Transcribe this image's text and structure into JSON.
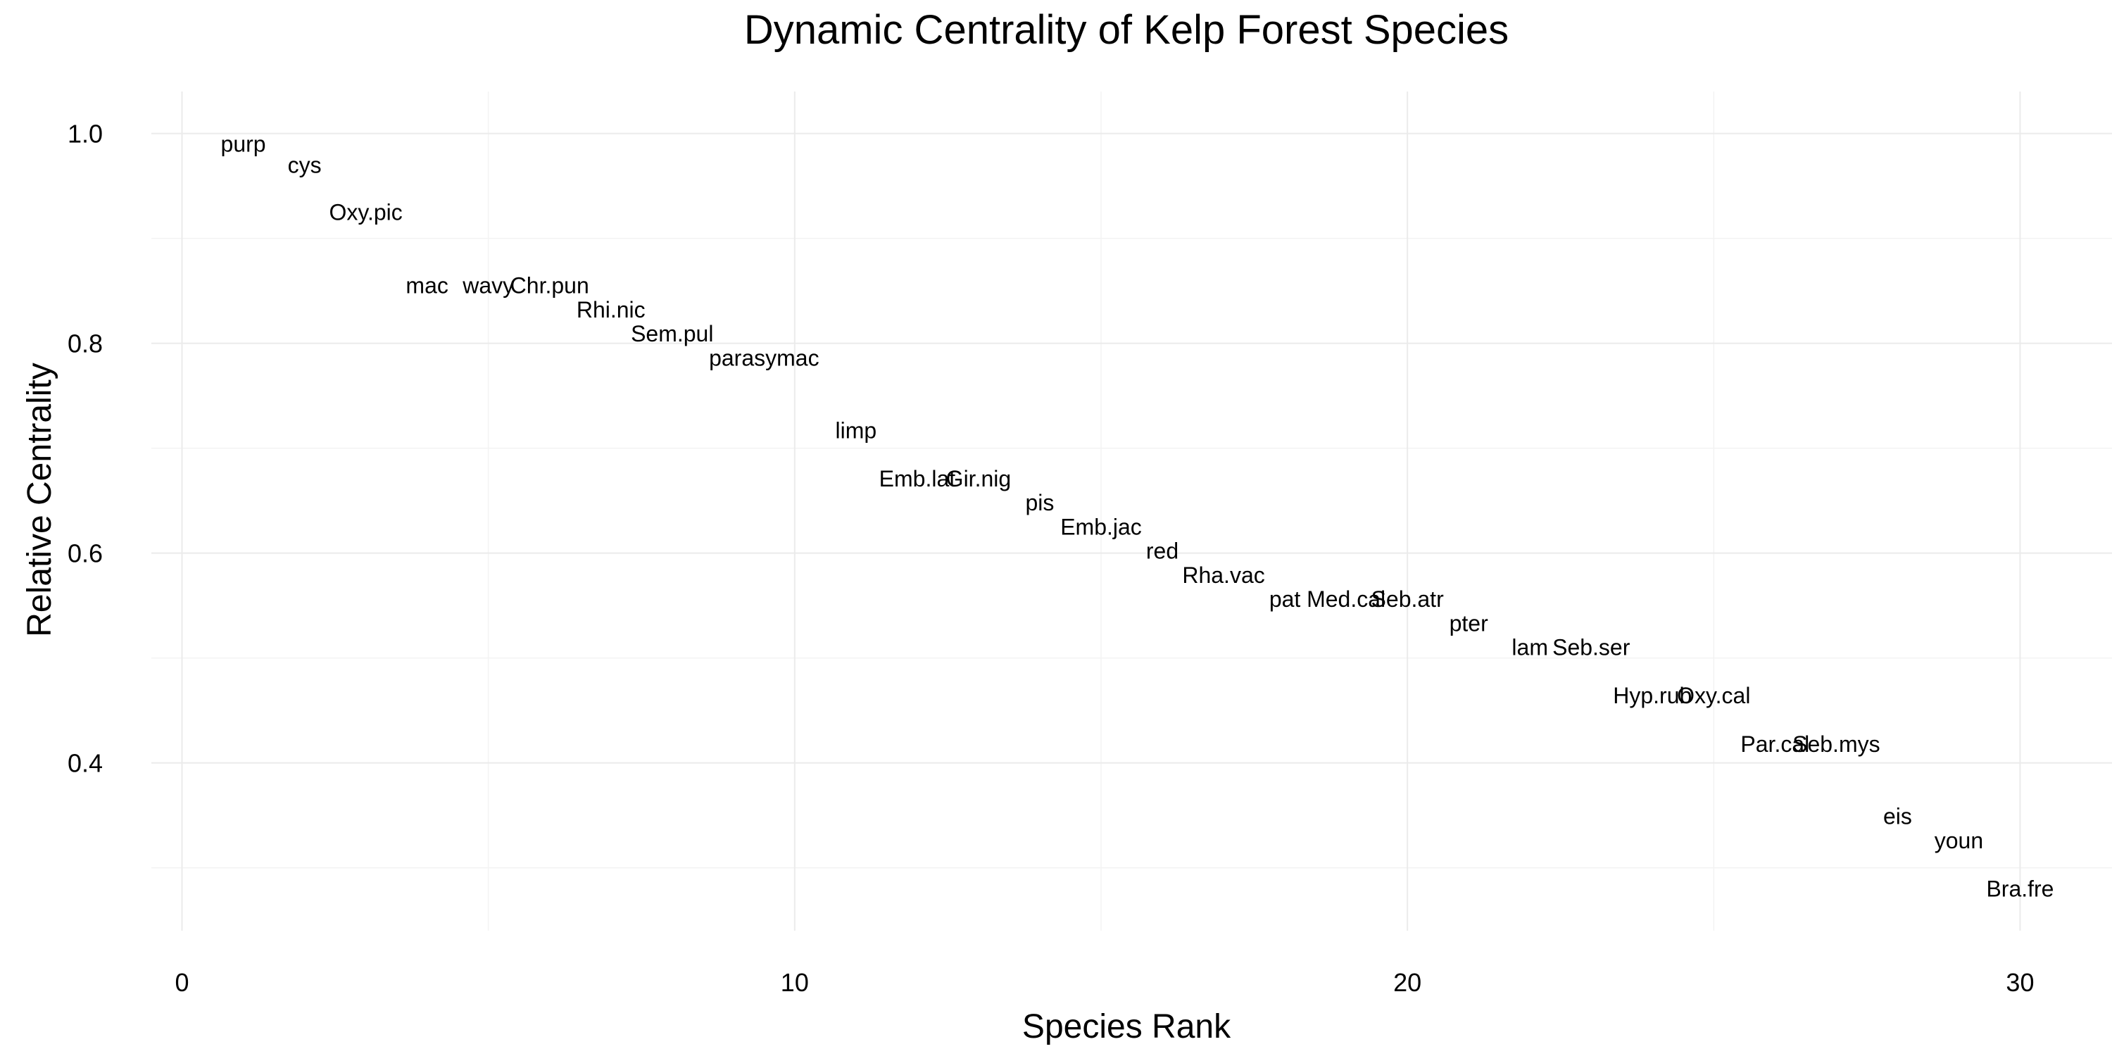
{
  "chart_data": {
    "type": "scatter",
    "mark": "text",
    "title": "Dynamic Centrality of Kelp Forest Species",
    "xlabel": "Species Rank",
    "ylabel": "Relative Centrality",
    "xlim": [
      -0.5,
      31.5
    ],
    "ylim": [
      0.24,
      1.04
    ],
    "x_ticks": [
      0,
      10,
      20,
      30
    ],
    "x_tick_labels": [
      "0",
      "10",
      "20",
      "30"
    ],
    "y_ticks": [
      0.4,
      0.6,
      0.8,
      1.0
    ],
    "y_tick_labels": [
      "0.4",
      "0.6",
      "0.8",
      "1.0"
    ],
    "grid": true,
    "legend": "none",
    "points": [
      {
        "label": "purp",
        "x": 1,
        "y": 0.99
      },
      {
        "label": "cys",
        "x": 2,
        "y": 0.97
      },
      {
        "label": "Oxy.pic",
        "x": 3,
        "y": 0.925
      },
      {
        "label": "mac",
        "x": 4,
        "y": 0.855
      },
      {
        "label": "wavy",
        "x": 5,
        "y": 0.855
      },
      {
        "label": "Chr.pun",
        "x": 6,
        "y": 0.855
      },
      {
        "label": "Rhi.nic",
        "x": 7,
        "y": 0.832
      },
      {
        "label": "Sem.pul",
        "x": 8,
        "y": 0.809
      },
      {
        "label": "parasymac",
        "x": 9.5,
        "y": 0.786
      },
      {
        "label": "limp",
        "x": 11,
        "y": 0.717
      },
      {
        "label": "Emb.lat",
        "x": 12,
        "y": 0.671
      },
      {
        "label": "Gir.nig",
        "x": 13,
        "y": 0.671
      },
      {
        "label": "pis",
        "x": 14,
        "y": 0.648
      },
      {
        "label": "Emb.jac",
        "x": 15,
        "y": 0.625
      },
      {
        "label": "red",
        "x": 16,
        "y": 0.602
      },
      {
        "label": "Rha.vac",
        "x": 17,
        "y": 0.579
      },
      {
        "label": "pat",
        "x": 18,
        "y": 0.556
      },
      {
        "label": "Med.cal",
        "x": 19,
        "y": 0.556
      },
      {
        "label": "Seb.atr",
        "x": 20,
        "y": 0.556
      },
      {
        "label": "pter",
        "x": 21,
        "y": 0.533
      },
      {
        "label": "lam",
        "x": 22,
        "y": 0.51
      },
      {
        "label": "Seb.ser",
        "x": 23,
        "y": 0.51
      },
      {
        "label": "Hyp.rub",
        "x": 24,
        "y": 0.464
      },
      {
        "label": "Oxy.cal",
        "x": 25,
        "y": 0.464
      },
      {
        "label": "Par.cal",
        "x": 26,
        "y": 0.418
      },
      {
        "label": "Seb.mys",
        "x": 27,
        "y": 0.418
      },
      {
        "label": "eis",
        "x": 28,
        "y": 0.349
      },
      {
        "label": "youn",
        "x": 29,
        "y": 0.326
      },
      {
        "label": "Bra.fre",
        "x": 30,
        "y": 0.28
      }
    ]
  }
}
